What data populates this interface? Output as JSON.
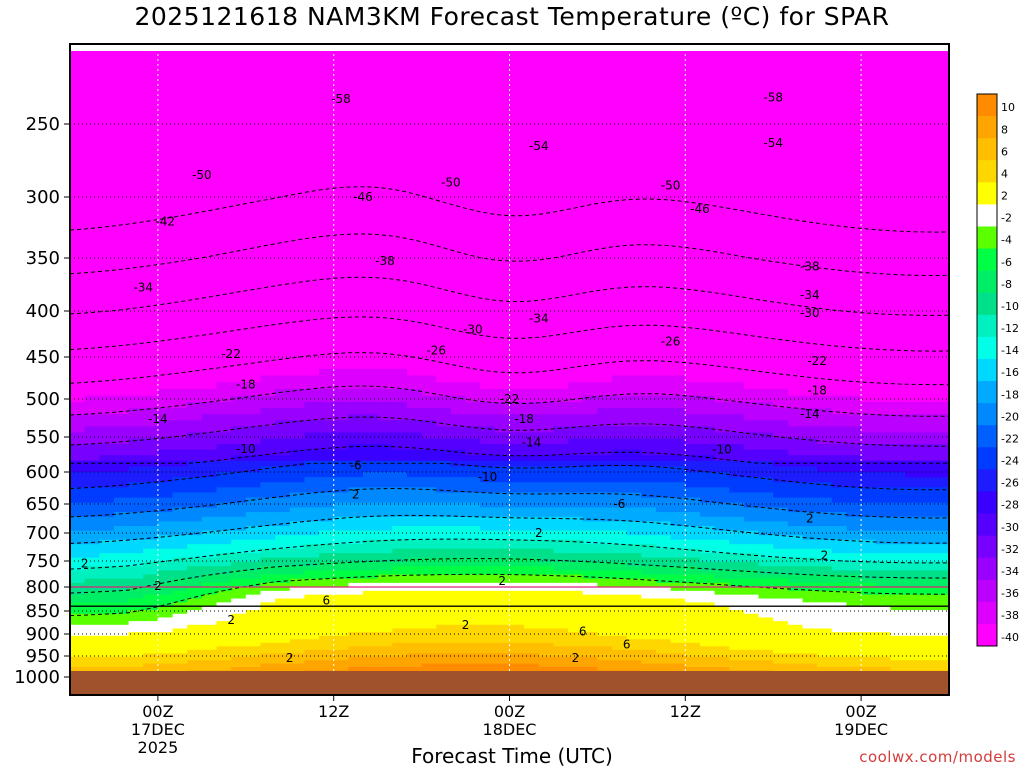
{
  "chart_data": {
    "type": "heatmap",
    "title": "2025121618 NAM3KM Forecast Temperature (ºC) for SPAR",
    "xlabel": "Forecast Time (UTC)",
    "ylabel": "",
    "credit": "coolwx.com/models",
    "x_range_hours": [
      -6,
      54
    ],
    "x_ticks": [
      {
        "hour": 0,
        "lines": [
          "00Z",
          "17DEC",
          "2025"
        ]
      },
      {
        "hour": 12,
        "lines": [
          "12Z"
        ]
      },
      {
        "hour": 24,
        "lines": [
          "00Z",
          "18DEC"
        ]
      },
      {
        "hour": 36,
        "lines": [
          "12Z"
        ]
      },
      {
        "hour": 48,
        "lines": [
          "00Z",
          "19DEC"
        ]
      }
    ],
    "y_ticks": [
      250,
      300,
      350,
      400,
      450,
      500,
      550,
      600,
      650,
      700,
      750,
      800,
      850,
      900,
      950,
      1000
    ],
    "y_range_hpa": [
      200,
      1020
    ],
    "ground_level_hpa": 990,
    "colorbar_levels": [
      10,
      8,
      6,
      4,
      2,
      -2,
      -4,
      -6,
      -8,
      -10,
      -12,
      -14,
      -16,
      -18,
      -20,
      -22,
      -24,
      -26,
      -28,
      -30,
      -32,
      -34,
      -36,
      -38,
      -40
    ],
    "colorbar_colors": [
      "#ff8c00",
      "#ffa500",
      "#ffbf00",
      "#ffd700",
      "#ffff00",
      "#ffffff",
      "#5aff00",
      "#00ff44",
      "#00ee66",
      "#00e08a",
      "#00f0c0",
      "#00ffe6",
      "#00d8ff",
      "#00aaff",
      "#0088ff",
      "#0060ff",
      "#003cff",
      "#1c1cff",
      "#3a00ff",
      "#5500ff",
      "#7700ff",
      "#9900ff",
      "#bb00ff",
      "#dd00ff",
      "#ff00ff"
    ],
    "isotherm_labels": [
      {
        "hour": 12.5,
        "p": 233,
        "v": "-58"
      },
      {
        "hour": 42,
        "p": 232,
        "v": "-58"
      },
      {
        "hour": 3,
        "p": 285,
        "v": "-50"
      },
      {
        "hour": 20,
        "p": 290,
        "v": "-50"
      },
      {
        "hour": 26,
        "p": 265,
        "v": "-54"
      },
      {
        "hour": 35,
        "p": 292,
        "v": "-50"
      },
      {
        "hour": 42,
        "p": 263,
        "v": "-54"
      },
      {
        "hour": 0.5,
        "p": 320,
        "v": "-42"
      },
      {
        "hour": 14,
        "p": 300,
        "v": "-46"
      },
      {
        "hour": 37,
        "p": 310,
        "v": "-46"
      },
      {
        "hour": 15.5,
        "p": 353,
        "v": "-38"
      },
      {
        "hour": -1,
        "p": 378,
        "v": "-34"
      },
      {
        "hour": 44.5,
        "p": 358,
        "v": "-38"
      },
      {
        "hour": 44.5,
        "p": 385,
        "v": "-34"
      },
      {
        "hour": 44.5,
        "p": 402,
        "v": "-30"
      },
      {
        "hour": 21.5,
        "p": 420,
        "v": "-30"
      },
      {
        "hour": 26,
        "p": 408,
        "v": "-34"
      },
      {
        "hour": 5,
        "p": 447,
        "v": "-22"
      },
      {
        "hour": 19,
        "p": 443,
        "v": "-26"
      },
      {
        "hour": 35,
        "p": 433,
        "v": "-26"
      },
      {
        "hour": 45,
        "p": 455,
        "v": "-22"
      },
      {
        "hour": 6,
        "p": 483,
        "v": "-18"
      },
      {
        "hour": 24,
        "p": 500,
        "v": "-22"
      },
      {
        "hour": 45,
        "p": 490,
        "v": "-18"
      },
      {
        "hour": 0,
        "p": 526,
        "v": "-14"
      },
      {
        "hour": 25,
        "p": 526,
        "v": "-18"
      },
      {
        "hour": 44.5,
        "p": 520,
        "v": "-14"
      },
      {
        "hour": 6,
        "p": 567,
        "v": "-10"
      },
      {
        "hour": 25.5,
        "p": 558,
        "v": "-14"
      },
      {
        "hour": 38.5,
        "p": 568,
        "v": "-10"
      },
      {
        "hour": 13.5,
        "p": 591,
        "v": "-6"
      },
      {
        "hour": 22.5,
        "p": 608,
        "v": "-10"
      },
      {
        "hour": 13.5,
        "p": 635,
        "v": "2"
      },
      {
        "hour": 31.5,
        "p": 650,
        "v": "-6"
      },
      {
        "hour": 44.5,
        "p": 675,
        "v": "2"
      },
      {
        "hour": -5,
        "p": 755,
        "v": "2"
      },
      {
        "hour": 0,
        "p": 798,
        "v": "2"
      },
      {
        "hour": 26,
        "p": 700,
        "v": "2"
      },
      {
        "hour": 45.5,
        "p": 740,
        "v": "2"
      },
      {
        "hour": 23.5,
        "p": 788,
        "v": "2"
      },
      {
        "hour": 5,
        "p": 870,
        "v": "2"
      },
      {
        "hour": 11.5,
        "p": 828,
        "v": "6"
      },
      {
        "hour": 21,
        "p": 880,
        "v": "2"
      },
      {
        "hour": 29,
        "p": 895,
        "v": "6"
      },
      {
        "hour": 32,
        "p": 924,
        "v": "6"
      },
      {
        "hour": 9,
        "p": 955,
        "v": "2"
      },
      {
        "hour": 28.5,
        "p": 955,
        "v": "2"
      }
    ]
  }
}
